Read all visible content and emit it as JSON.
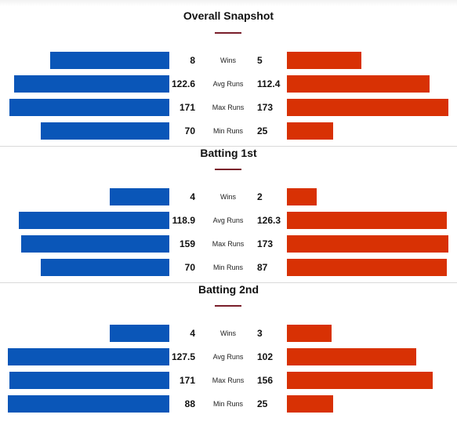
{
  "colors": {
    "left": "#0a56b8",
    "right": "#d83104",
    "accent": "#7a1f2b"
  },
  "chart_data": [
    {
      "type": "bar",
      "title": "Overall Snapshot",
      "categories": [
        "Wins",
        "Avg Runs",
        "Max Runs",
        "Min Runs"
      ],
      "series": [
        {
          "values": [
            8,
            122.6,
            171,
            70
          ],
          "labels": [
            "8",
            "122.6",
            "171",
            "70"
          ]
        },
        {
          "values": [
            5,
            112.4,
            173,
            25
          ],
          "labels": [
            "5",
            "112.4",
            "173",
            "25"
          ]
        }
      ]
    },
    {
      "type": "bar",
      "title": "Batting 1st",
      "categories": [
        "Wins",
        "Avg Runs",
        "Max Runs",
        "Min Runs"
      ],
      "series": [
        {
          "values": [
            4,
            118.9,
            159,
            70
          ],
          "labels": [
            "4",
            "118.9",
            "159",
            "70"
          ]
        },
        {
          "values": [
            2,
            126.3,
            173,
            87
          ],
          "labels": [
            "2",
            "126.3",
            "173",
            "87"
          ]
        }
      ]
    },
    {
      "type": "bar",
      "title": "Batting 2nd",
      "categories": [
        "Wins",
        "Avg Runs",
        "Max Runs",
        "Min Runs"
      ],
      "series": [
        {
          "values": [
            4,
            127.5,
            171,
            88
          ],
          "labels": [
            "4",
            "127.5",
            "171",
            "88"
          ]
        },
        {
          "values": [
            3,
            102,
            156,
            25
          ],
          "labels": [
            "3",
            "102",
            "156",
            "25"
          ]
        }
      ]
    }
  ]
}
